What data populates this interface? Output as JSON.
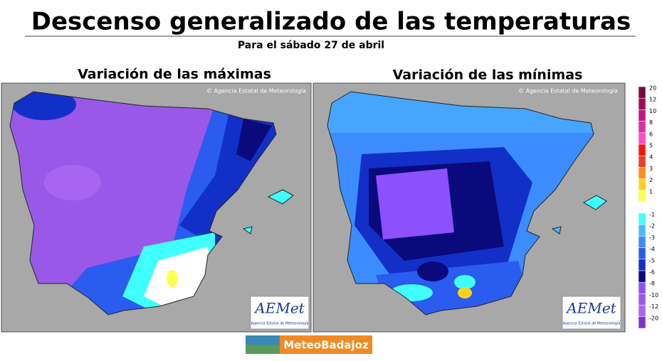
{
  "header": {
    "title": "Descenso generalizado de las temperaturas",
    "subtitle": "Para el sábado 27 de abril"
  },
  "maps": [
    {
      "title": "Variación de las máximas",
      "copyright": "© Agencia Estatal de Meteorología",
      "logo": "AEMet",
      "logo_caption": "Agencia Estatal de Meteorología"
    },
    {
      "title": "Variación de las mínimas",
      "copyright": "© Agencia Estatal de Meteorología",
      "logo": "AEMet",
      "logo_caption": "Agencia Estatal de Meteorología"
    }
  ],
  "legend": {
    "items": [
      {
        "label": 20,
        "color": "#7a0a3c"
      },
      {
        "label": 12,
        "color": "#9c0e5a"
      },
      {
        "label": 10,
        "color": "#c0187c"
      },
      {
        "label": 8,
        "color": "#e02ca8"
      },
      {
        "label": 6,
        "color": "#ff4ccc"
      },
      {
        "label": 5,
        "color": "#ff1010"
      },
      {
        "label": 4,
        "color": "#e8402a"
      },
      {
        "label": 3,
        "color": "#ff8c1a"
      },
      {
        "label": 2,
        "color": "#ffd21a"
      },
      {
        "label": 1,
        "color": "#ffff50"
      },
      {
        "label": -1,
        "color": "#40ffff"
      },
      {
        "label": -2,
        "color": "#4cb8ff"
      },
      {
        "label": -3,
        "color": "#3c8cff"
      },
      {
        "label": -4,
        "color": "#2a5cf0"
      },
      {
        "label": -5,
        "color": "#1230c8"
      },
      {
        "label": -6,
        "color": "#0a0a7c"
      },
      {
        "label": -8,
        "color": "#8c50ff"
      },
      {
        "label": -10,
        "color": "#9a58e8"
      },
      {
        "label": -12,
        "color": "#a866f0"
      },
      {
        "label": -20,
        "color": "#8a2ccc"
      }
    ]
  },
  "footer": {
    "brand": "MeteoBadajoz"
  }
}
